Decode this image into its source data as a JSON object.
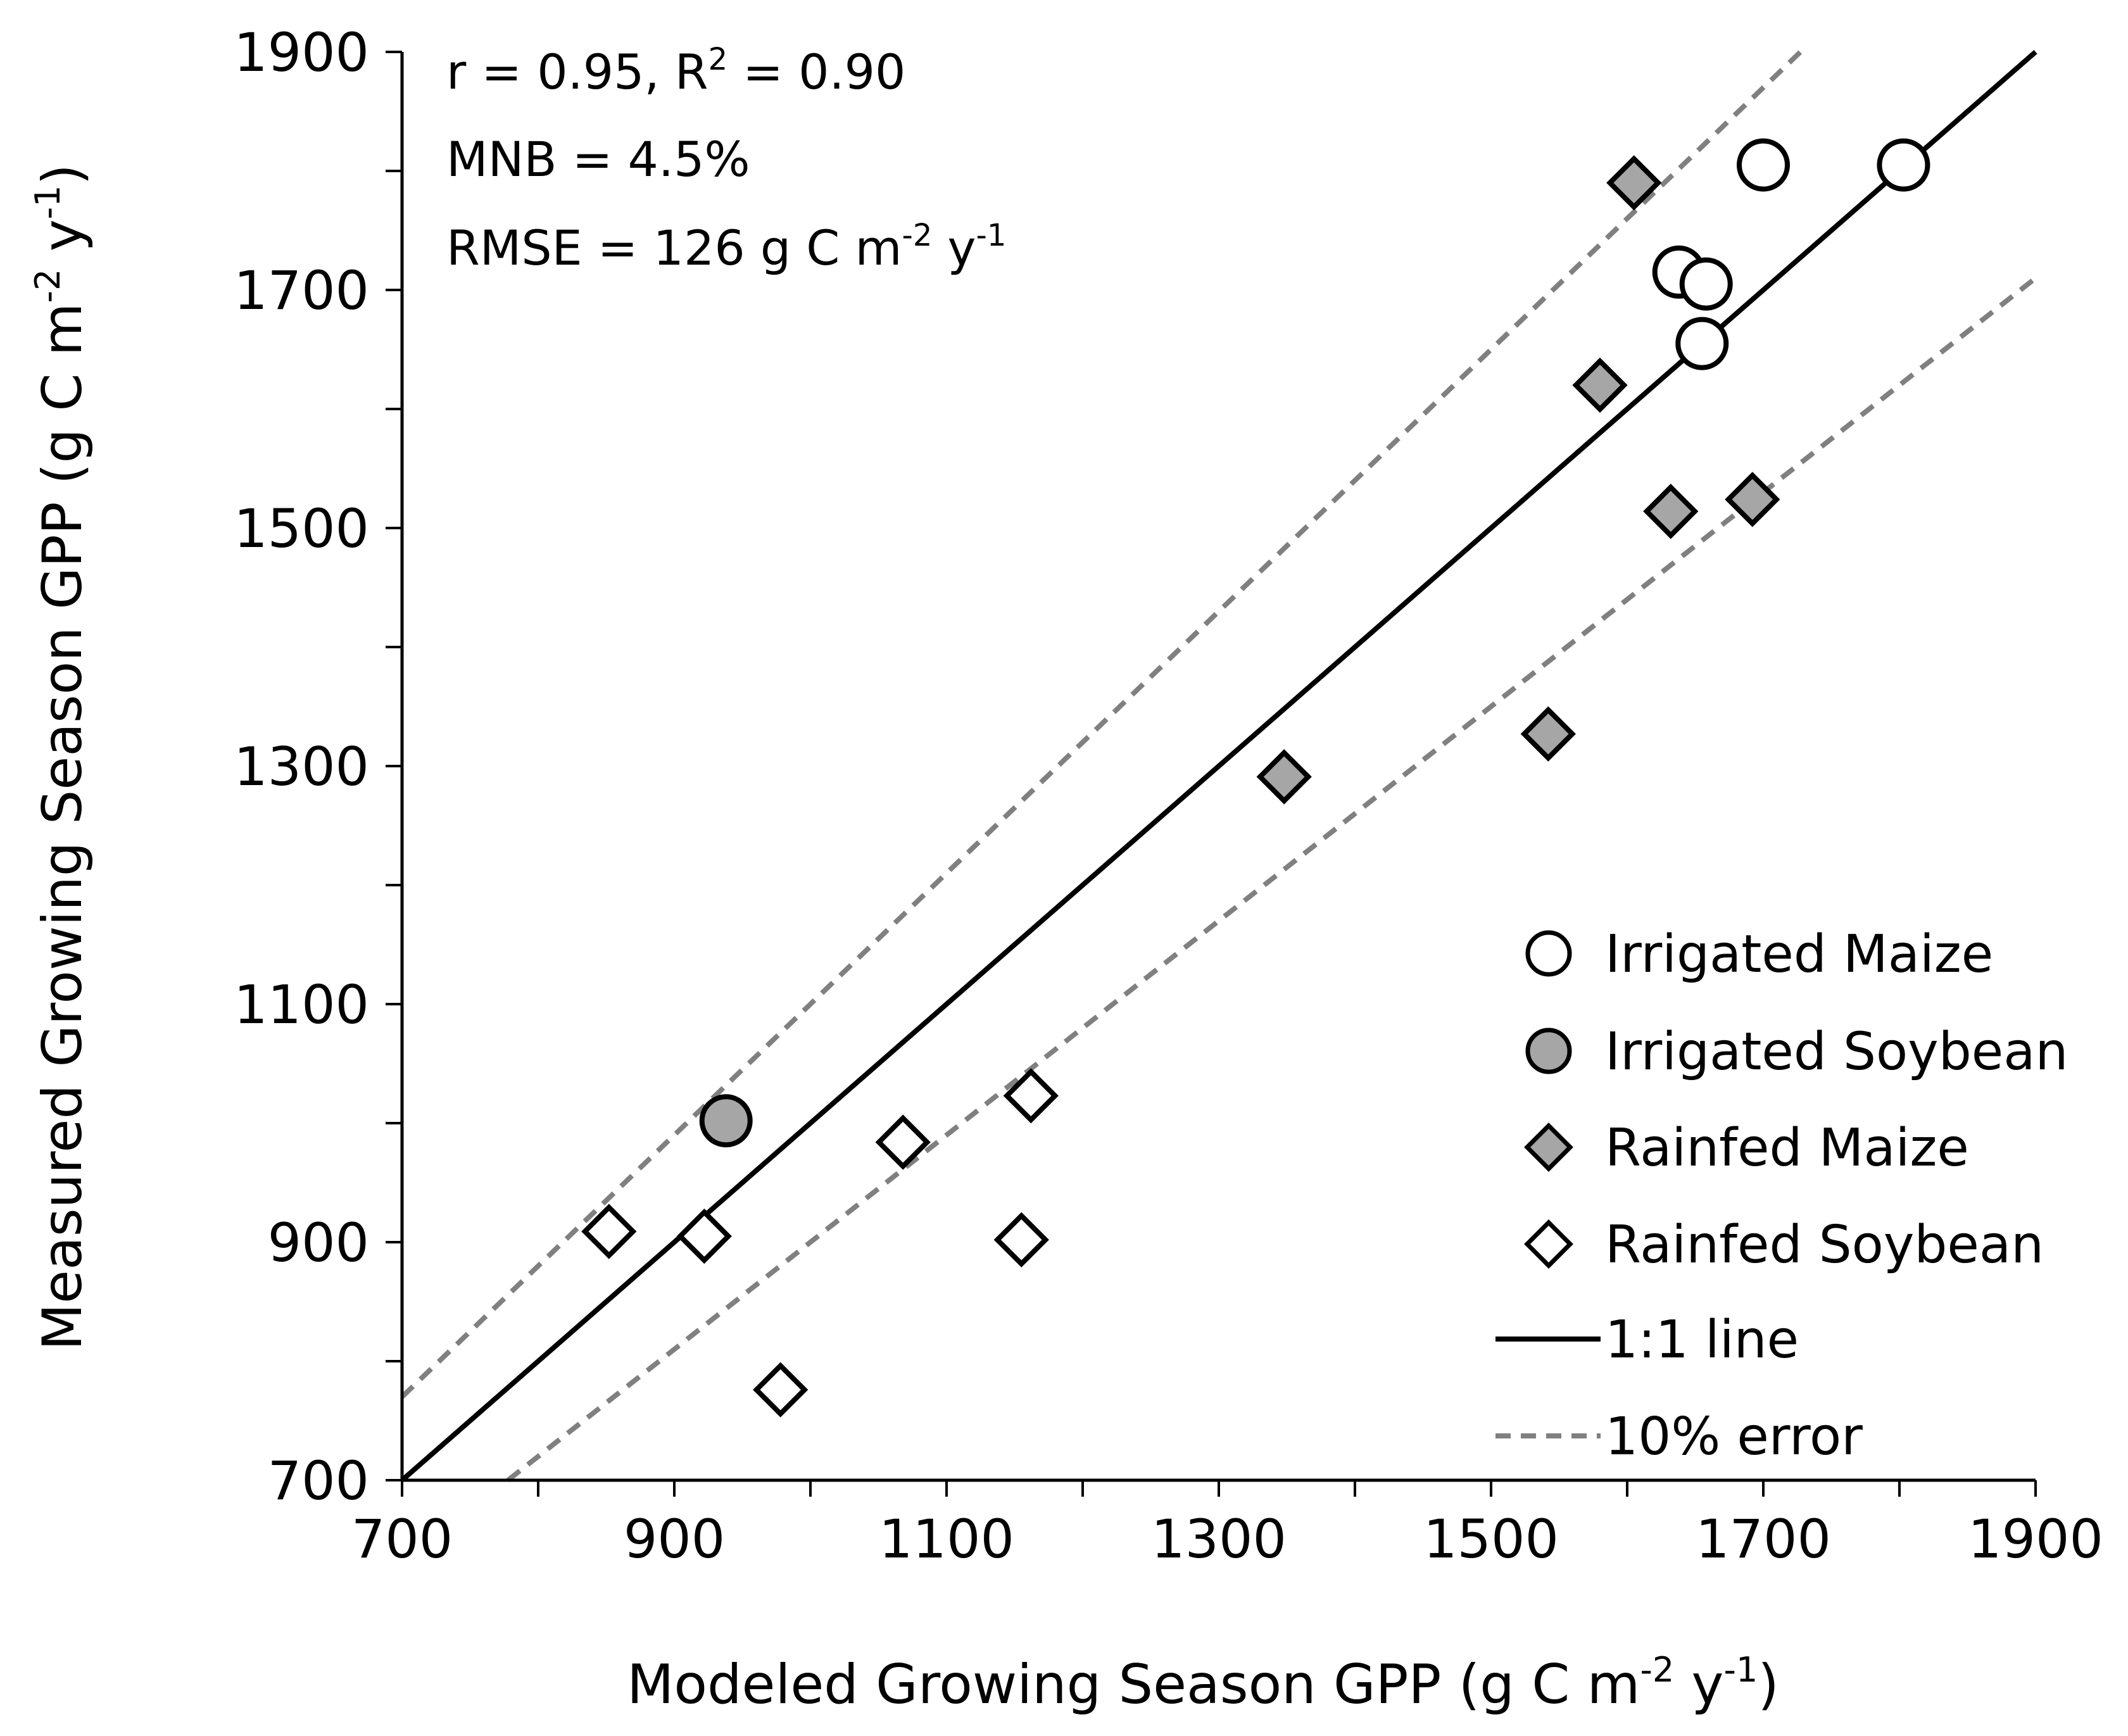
{
  "chart_data": {
    "type": "scatter",
    "xlabel": "Modeled Growing Season GPP (g C m",
    "xlabel_sup1": "-2",
    "xlabel_mid": " y",
    "xlabel_sup2": "-1",
    "xlabel_end": ")",
    "ylabel": "Measured Growing Season GPP (g C m",
    "ylabel_sup1": "-2",
    "ylabel_mid": " y",
    "ylabel_sup2": "-1",
    "ylabel_end": ")",
    "xlim": [
      700,
      1900
    ],
    "ylim": [
      700,
      1900
    ],
    "x_ticks": [
      700,
      900,
      1100,
      1300,
      1500,
      1700,
      1900
    ],
    "y_ticks": [
      700,
      900,
      1100,
      1300,
      1500,
      1700,
      1900
    ],
    "x_minor_step": 100,
    "y_minor_step": 100,
    "grid": false,
    "legend_position": "bottom-right",
    "stats": {
      "line1_a": "r = 0.95, R",
      "line1_sup": "2",
      "line1_b": " = 0.90",
      "line2": "MNB = 4.5%",
      "line3_a": "RMSE = 126 g C m",
      "line3_sup1": "-2",
      "line3_b": " y",
      "line3_sup2": "-1"
    },
    "series": [
      {
        "name": "Irrigated Maize",
        "marker": "circle",
        "fill": "#ffffff",
        "points": [
          [
            1700,
            1805
          ],
          [
            1803,
            1805
          ],
          [
            1638,
            1715
          ],
          [
            1658,
            1705
          ],
          [
            1655,
            1655
          ]
        ]
      },
      {
        "name": "Irrigated Soybean",
        "marker": "circle",
        "fill": "#a6a6a6",
        "points": [
          [
            938,
            1002
          ]
        ]
      },
      {
        "name": "Rainfed Maize",
        "marker": "diamond",
        "fill": "#a6a6a6",
        "points": [
          [
            1605,
            1790
          ],
          [
            1580,
            1620
          ],
          [
            1632,
            1514
          ],
          [
            1692,
            1524
          ],
          [
            1348,
            1291
          ],
          [
            1542,
            1327
          ]
        ]
      },
      {
        "name": "Rainfed Soybean",
        "marker": "diamond",
        "fill": "#ffffff",
        "points": [
          [
            852,
            909
          ],
          [
            922,
            905
          ],
          [
            1068,
            984
          ],
          [
            1162,
            1023
          ],
          [
            1155,
            902
          ],
          [
            978,
            776
          ]
        ]
      }
    ],
    "lines": [
      {
        "name": "1:1 line",
        "style": "solid",
        "color": "#000000",
        "slope": 1.0
      },
      {
        "name": "10% error",
        "style": "dashed",
        "color": "#808080",
        "slopes": [
          1.1,
          0.9
        ]
      }
    ]
  }
}
